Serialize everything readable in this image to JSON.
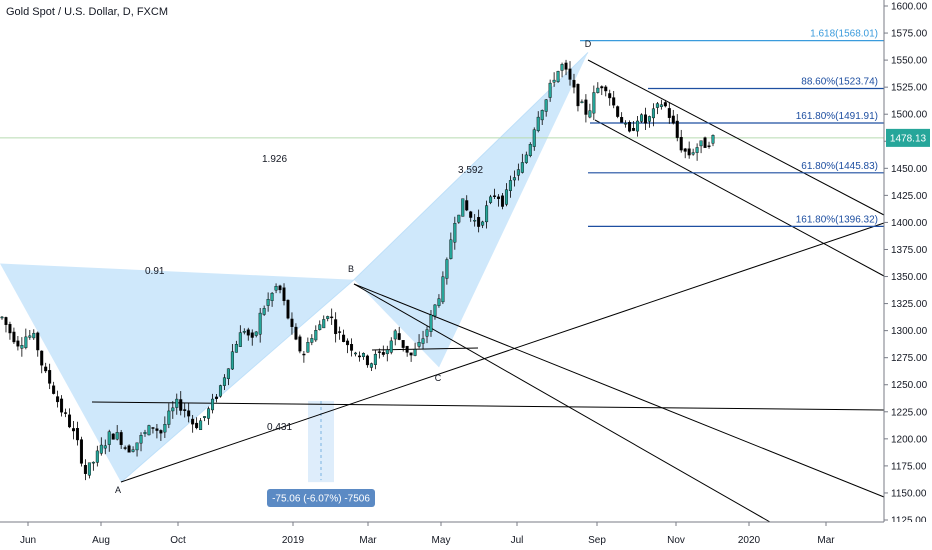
{
  "header": {
    "title": "Gold Spot / U.S. Dollar, D, FXCM"
  },
  "chart_data": {
    "type": "candlestick",
    "instrument": "Gold Spot / U.S. Dollar",
    "interval": "D",
    "source": "FXCM",
    "ylim": [
      1115,
      1612
    ],
    "y_ticks": [
      1125,
      1150,
      1175,
      1200,
      1225,
      1250,
      1275,
      1300,
      1325,
      1350,
      1375,
      1400,
      1425,
      1450,
      1475,
      1500,
      1525,
      1550,
      1575,
      1600
    ],
    "y_tick_labels": [
      "1125.00",
      "1150.00",
      "1175.00",
      "1200.00",
      "1225.00",
      "1250.00",
      "1275.00",
      "1300.00",
      "1325.00",
      "1350.00",
      "1375.00",
      "1400.00",
      "1425.00",
      "1450.00",
      "1475.00",
      "1500.00",
      "1525.00",
      "1550.00",
      "1575.00",
      "1600.00"
    ],
    "x_tick_labels": [
      "Jun",
      "Aug",
      "Oct",
      "2019",
      "Mar",
      "May",
      "Jul",
      "Sep",
      "Nov",
      "2020",
      "Mar"
    ],
    "last_price": {
      "value": 1478.13,
      "label": "1478.13",
      "color": "#26a69a"
    },
    "grid": false,
    "pattern": {
      "points": [
        {
          "name": "X",
          "label": "",
          "value": 1362
        },
        {
          "name": "A",
          "label": "A",
          "value": 1160
        },
        {
          "name": "B",
          "label": "B",
          "value": 1347
        },
        {
          "name": "C",
          "label": "C",
          "value": 1266
        },
        {
          "name": "D",
          "label": "D",
          "value": 1557
        }
      ],
      "ratios": [
        {
          "text": "0.91"
        },
        {
          "text": "1.926"
        },
        {
          "text": "0.431"
        },
        {
          "text": "3.592"
        }
      ],
      "fill_color": "#bfe0f9"
    },
    "fib_levels": [
      {
        "label": "1.618(1568.01)",
        "value": 1568.01,
        "color": "#3a9bdc"
      },
      {
        "label": "88.60%(1523.74)",
        "value": 1523.74,
        "color": "#1e4fa1"
      },
      {
        "label": "161.80%(1491.91)",
        "value": 1491.91,
        "color": "#1e4fa1"
      },
      {
        "label": "61.80%(1445.83)",
        "value": 1445.83,
        "color": "#1e4fa1"
      },
      {
        "label": "161.80%(1396.32)",
        "value": 1396.32,
        "color": "#1e4fa1"
      }
    ],
    "measure": {
      "label": "-75.06 (-6.07%) -7506",
      "from": 1235,
      "to": 1160
    },
    "candle_colors": {
      "up": "#26a69a",
      "down": "#000000"
    },
    "price_path": [
      1312,
      1298,
      1288,
      1296,
      1292,
      1262,
      1248,
      1228,
      1215,
      1196,
      1168,
      1180,
      1193,
      1205,
      1202,
      1190,
      1196,
      1204,
      1212,
      1206,
      1222,
      1233,
      1226,
      1212,
      1218,
      1230,
      1246,
      1268,
      1290,
      1302,
      1288,
      1318,
      1330,
      1343,
      1318,
      1290,
      1278,
      1296,
      1304,
      1318,
      1300,
      1290,
      1284,
      1276,
      1270,
      1278,
      1282,
      1298,
      1286,
      1276,
      1288,
      1305,
      1328,
      1352,
      1402,
      1418,
      1405,
      1398,
      1414,
      1428,
      1418,
      1442,
      1448,
      1470,
      1500,
      1512,
      1535,
      1545,
      1528,
      1510,
      1500,
      1522,
      1530,
      1510,
      1496,
      1480,
      1498,
      1492,
      1502,
      1512,
      1495,
      1472,
      1462,
      1470,
      1472,
      1478
    ]
  }
}
